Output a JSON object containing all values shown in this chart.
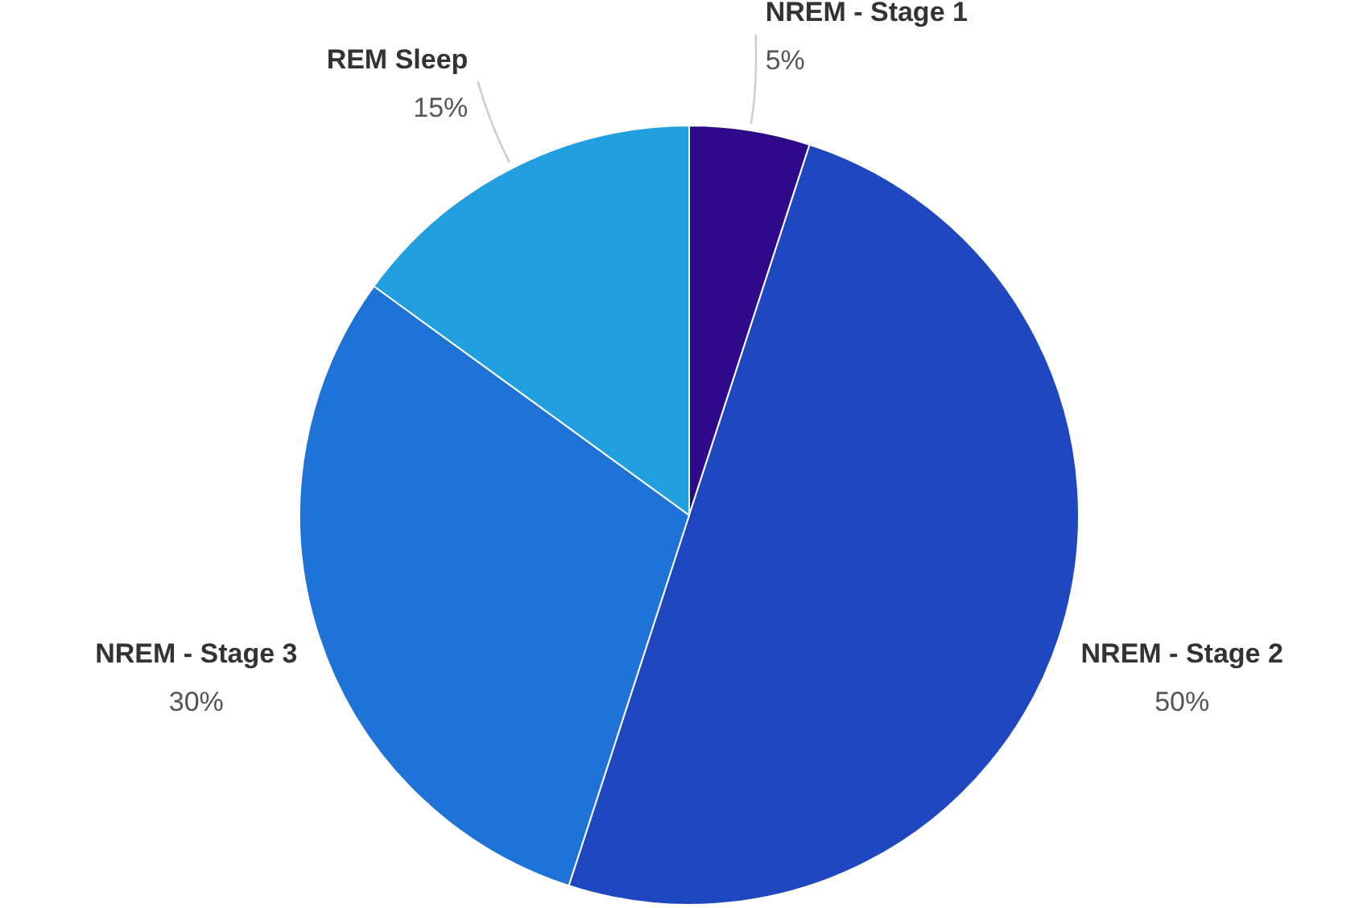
{
  "chart_data": {
    "type": "pie",
    "categories": [
      "NREM - Stage 1",
      "NREM - Stage 2",
      "NREM - Stage 3",
      "REM Sleep"
    ],
    "values": [
      5,
      50,
      30,
      15
    ],
    "value_labels": [
      "5%",
      "50%",
      "30%",
      "15%"
    ],
    "colors": [
      "#2e0a8a",
      "#1f47bf",
      "#1f73d6",
      "#21a0e0"
    ]
  }
}
